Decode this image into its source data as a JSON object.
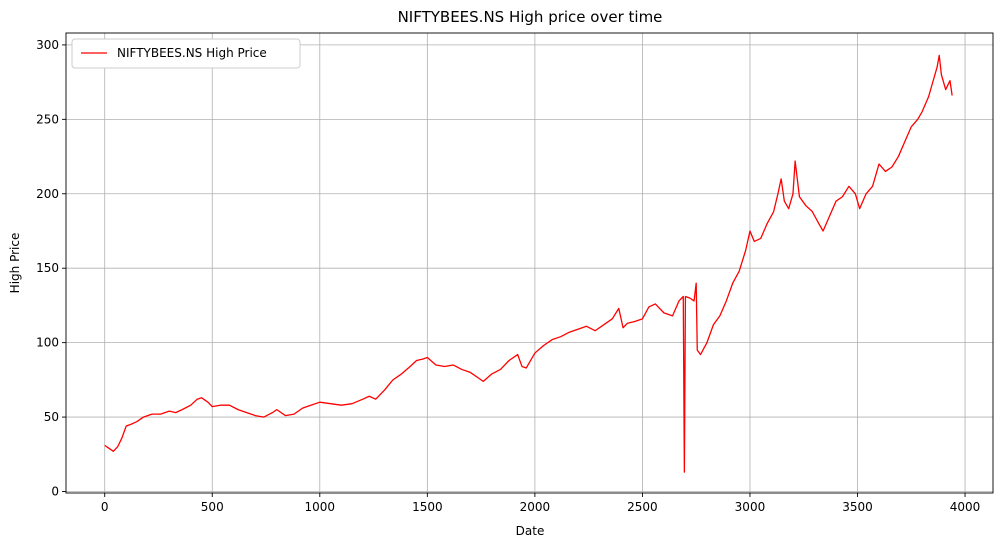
{
  "chart_data": {
    "type": "line",
    "title": "NIFTYBEES.NS High price over time",
    "xlabel": "Date",
    "ylabel": "High Price",
    "xlim": [
      -180,
      4130
    ],
    "ylim": [
      -1,
      308
    ],
    "xticks": [
      0,
      500,
      1000,
      1500,
      2000,
      2500,
      3000,
      3500,
      4000
    ],
    "yticks": [
      0,
      50,
      100,
      150,
      200,
      250,
      300
    ],
    "grid": true,
    "legend_position": "top-left",
    "color": "#ff0000",
    "series": [
      {
        "name": "NIFTYBEES.NS High Price",
        "x": [
          0,
          20,
          40,
          60,
          80,
          100,
          120,
          150,
          180,
          220,
          260,
          300,
          330,
          360,
          400,
          430,
          450,
          480,
          500,
          540,
          580,
          620,
          660,
          700,
          740,
          780,
          800,
          840,
          880,
          920,
          960,
          1000,
          1050,
          1100,
          1150,
          1200,
          1230,
          1260,
          1300,
          1340,
          1380,
          1420,
          1450,
          1480,
          1500,
          1540,
          1580,
          1620,
          1660,
          1700,
          1740,
          1760,
          1800,
          1840,
          1880,
          1920,
          1940,
          1960,
          2000,
          2040,
          2080,
          2120,
          2160,
          2200,
          2240,
          2280,
          2320,
          2360,
          2390,
          2410,
          2430,
          2460,
          2500,
          2530,
          2560,
          2600,
          2640,
          2670,
          2690,
          2695,
          2700,
          2720,
          2740,
          2750,
          2755,
          2770,
          2800,
          2830,
          2860,
          2890,
          2920,
          2950,
          2980,
          3000,
          3020,
          3050,
          3080,
          3110,
          3130,
          3145,
          3160,
          3180,
          3200,
          3210,
          3230,
          3260,
          3290,
          3320,
          3340,
          3370,
          3400,
          3430,
          3460,
          3490,
          3510,
          3540,
          3570,
          3600,
          3630,
          3660,
          3690,
          3720,
          3750,
          3780,
          3800,
          3830,
          3850,
          3870,
          3880,
          3890,
          3910,
          3930,
          3940
        ],
        "values": [
          31,
          29,
          27,
          30,
          36,
          44,
          45,
          47,
          50,
          52,
          52,
          54,
          53,
          55,
          58,
          62,
          63,
          60,
          57,
          58,
          58,
          55,
          53,
          51,
          50,
          53,
          55,
          51,
          52,
          56,
          58,
          60,
          59,
          58,
          59,
          62,
          64,
          62,
          68,
          75,
          79,
          84,
          88,
          89,
          90,
          85,
          84,
          85,
          82,
          80,
          76,
          74,
          79,
          82,
          88,
          92,
          84,
          83,
          93,
          98,
          102,
          104,
          107,
          109,
          111,
          108,
          112,
          116,
          123,
          110,
          113,
          114,
          116,
          124,
          126,
          120,
          118,
          128,
          131,
          13,
          131,
          130,
          128,
          140,
          95,
          92,
          100,
          112,
          118,
          128,
          140,
          148,
          162,
          175,
          168,
          170,
          180,
          188,
          200,
          210,
          195,
          190,
          200,
          222,
          198,
          192,
          188,
          180,
          175,
          185,
          195,
          198,
          205,
          200,
          190,
          200,
          205,
          220,
          215,
          218,
          225,
          235,
          245,
          250,
          255,
          265,
          275,
          285,
          293,
          280,
          270,
          276,
          266
        ]
      }
    ]
  }
}
